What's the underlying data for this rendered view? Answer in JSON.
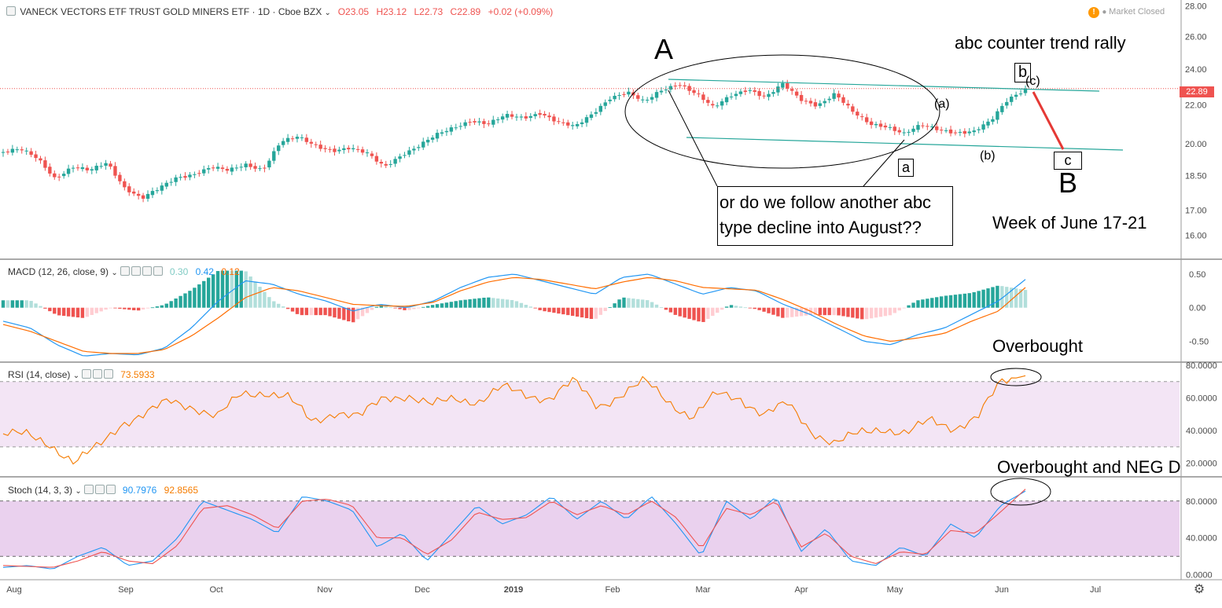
{
  "header": {
    "symbol": "VANECK VECTORS ETF TRUST GOLD MINERS ETF · 1D · Cboe BZX",
    "open": "O23.05",
    "high": "H23.12",
    "low": "L22.73",
    "close": "C22.89",
    "change": "+0.02 (+0.09%)",
    "market_status": "Market Closed",
    "last_price": "22.89"
  },
  "indicators": {
    "macd": {
      "label": "MACD (12, 26, close, 9)",
      "v1": "0.30",
      "v2": "0.42",
      "v3": "0.12"
    },
    "rsi": {
      "label": "RSI (14, close)",
      "v1": "73.5933"
    },
    "stoch": {
      "label": "Stoch (14, 3, 3)",
      "v1": "90.7976",
      "v2": "92.8565"
    }
  },
  "annotations": {
    "big_a": "A",
    "big_b": "B",
    "counter_rally": "abc counter trend rally",
    "small_b_box": "b",
    "small_c_paren": "(c)",
    "small_a_paren": "(a)",
    "small_b_paren": "(b)",
    "small_a_box": "a",
    "small_c_box": "c",
    "question_line1": "or do we follow another abc",
    "question_line2": "type decline into August??",
    "week": "Week of June 17-21",
    "overbought": "Overbought",
    "overbought_neg": "Overbought and NEG D"
  },
  "colors": {
    "up": "#26a69a",
    "down": "#ef5350",
    "macd_line": "#2196f3",
    "signal_line": "#ff6d00",
    "rsi_line": "#f57c00",
    "band": "#e1bee7",
    "price_tag": "#ef5350"
  },
  "chart_data": [
    {
      "type": "candlestick",
      "title": "VANECK VECTORS ETF TRUST GOLD MINERS ETF · 1D · Cboe BZX",
      "x_ticks": [
        "Aug",
        "Sep",
        "Oct",
        "Nov",
        "Dec",
        "2019",
        "Feb",
        "Mar",
        "Apr",
        "May",
        "Jun",
        "Jul"
      ],
      "y_ticks": [
        16.0,
        17.0,
        18.5,
        20.0,
        22.0,
        24.0,
        26.0,
        28.0
      ],
      "y_scale": "log",
      "y_range": [
        15.2,
        28.2
      ],
      "anchors": [
        19.6,
        19.7,
        19.3,
        18.4,
        18.9,
        18.7,
        19.1,
        18.0,
        17.5,
        17.9,
        18.4,
        18.6,
        18.9,
        18.7,
        19.0,
        18.8,
        20.1,
        20.3,
        19.9,
        19.7,
        19.8,
        19.5,
        18.9,
        19.5,
        19.9,
        20.4,
        20.8,
        21.2,
        21.0,
        21.4,
        21.3,
        21.6,
        21.1,
        20.8,
        21.5,
        22.4,
        22.7,
        22.1,
        22.8,
        23.2,
        22.6,
        21.8,
        22.5,
        22.9,
        22.4,
        23.1,
        22.3,
        22.0,
        22.6,
        21.6,
        21.0,
        20.9,
        20.5,
        20.9,
        20.7,
        20.6,
        20.6,
        21.1,
        22.3,
        22.9
      ],
      "last": 22.89
    },
    {
      "type": "line",
      "title": "MACD (12, 26, close, 9)",
      "y_ticks": [
        -0.5,
        0.0,
        0.5
      ],
      "y_range": [
        -0.75,
        0.65
      ],
      "macd": [
        -0.2,
        -0.3,
        -0.55,
        -0.72,
        -0.68,
        -0.7,
        -0.6,
        -0.3,
        0.1,
        0.4,
        0.35,
        0.2,
        0.1,
        -0.05,
        0.05,
        0.0,
        0.1,
        0.3,
        0.45,
        0.5,
        0.4,
        0.3,
        0.2,
        0.45,
        0.5,
        0.35,
        0.2,
        0.3,
        0.25,
        0.05,
        -0.1,
        -0.3,
        -0.5,
        -0.55,
        -0.4,
        -0.3,
        -0.1,
        0.1,
        0.42
      ],
      "signal": [
        -0.25,
        -0.35,
        -0.5,
        -0.65,
        -0.68,
        -0.68,
        -0.62,
        -0.42,
        -0.15,
        0.15,
        0.3,
        0.25,
        0.15,
        0.05,
        0.03,
        0.02,
        0.08,
        0.25,
        0.38,
        0.45,
        0.42,
        0.35,
        0.28,
        0.38,
        0.45,
        0.4,
        0.3,
        0.28,
        0.26,
        0.12,
        -0.05,
        -0.25,
        -0.42,
        -0.5,
        -0.45,
        -0.38,
        -0.2,
        -0.05,
        0.3
      ],
      "histogram_last": 0.12
    },
    {
      "type": "line",
      "title": "RSI (14, close)",
      "y_ticks": [
        20,
        40,
        60,
        80
      ],
      "y_range": [
        15,
        80
      ],
      "band": [
        30,
        70
      ],
      "values": [
        38,
        37,
        32,
        20,
        30,
        45,
        50,
        58,
        55,
        48,
        62,
        64,
        60,
        45,
        52,
        48,
        60,
        62,
        55,
        60,
        58,
        66,
        62,
        60,
        70,
        55,
        62,
        70,
        58,
        48,
        62,
        60,
        50,
        56,
        40,
        32,
        38,
        42,
        38,
        46,
        42,
        48,
        70,
        73.6
      ]
    },
    {
      "type": "line",
      "title": "Stoch (14, 3, 3)",
      "y_ticks": [
        0,
        40,
        80
      ],
      "y_range": [
        -2,
        102
      ],
      "band": [
        20,
        80
      ],
      "k": [
        8,
        10,
        6,
        20,
        30,
        10,
        15,
        40,
        80,
        70,
        60,
        45,
        85,
        80,
        70,
        30,
        45,
        15,
        45,
        75,
        55,
        65,
        85,
        60,
        80,
        60,
        85,
        55,
        20,
        80,
        60,
        85,
        25,
        50,
        15,
        10,
        30,
        20,
        55,
        40,
        75,
        90.8
      ],
      "d": [
        10,
        9,
        8,
        15,
        25,
        15,
        12,
        32,
        72,
        75,
        65,
        50,
        80,
        82,
        75,
        40,
        40,
        22,
        38,
        68,
        60,
        62,
        80,
        65,
        75,
        65,
        80,
        62,
        28,
        72,
        65,
        80,
        30,
        45,
        20,
        12,
        25,
        22,
        48,
        45,
        68,
        92.9
      ]
    }
  ]
}
